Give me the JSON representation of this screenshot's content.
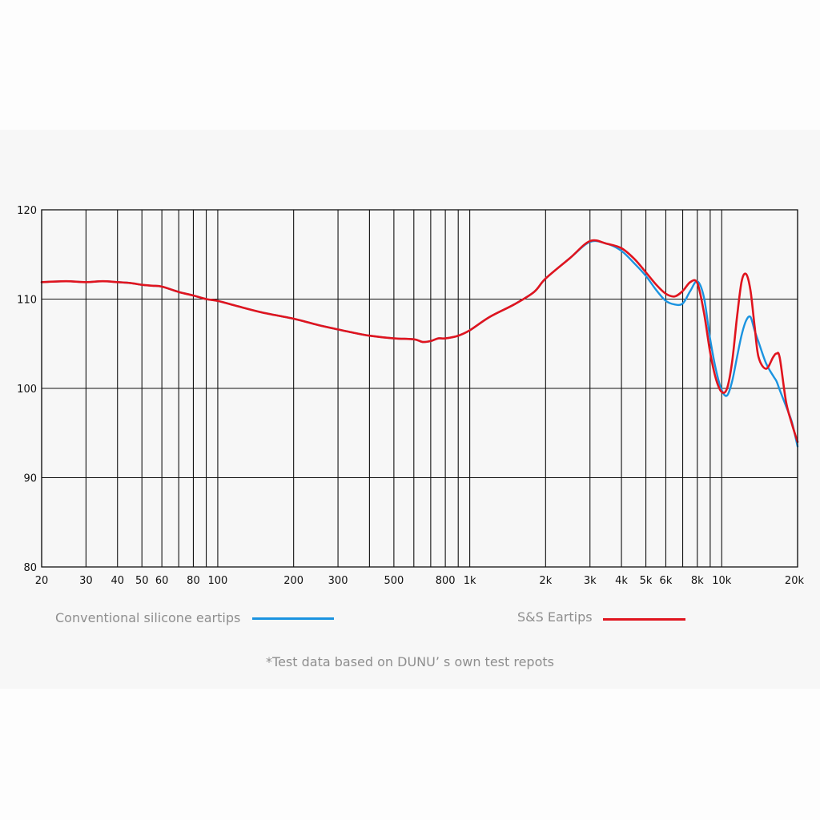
{
  "chart_data": {
    "type": "line",
    "title": "",
    "xlabel": "",
    "ylabel": "",
    "x_scale": "log",
    "xlim": [
      20,
      20000
    ],
    "ylim": [
      80,
      120
    ],
    "grid": true,
    "y_ticks": [
      80,
      90,
      100,
      110,
      120
    ],
    "y_tick_labels": [
      "80",
      "90",
      "100",
      "110",
      "120"
    ],
    "x_ticks": [
      20,
      30,
      40,
      50,
      60,
      80,
      100,
      200,
      300,
      500,
      800,
      1000,
      2000,
      3000,
      4000,
      5000,
      6000,
      8000,
      10000,
      20000
    ],
    "x_tick_labels": [
      "20",
      "30",
      "40",
      "50",
      "60",
      "80",
      "100",
      "200",
      "300",
      "500",
      "800",
      "1k",
      "2k",
      "3k",
      "4k",
      "5k",
      "6k",
      "8k",
      "10k",
      "20k"
    ],
    "x_grid": [
      20,
      30,
      40,
      50,
      60,
      70,
      80,
      90,
      100,
      200,
      300,
      400,
      500,
      600,
      700,
      800,
      900,
      1000,
      2000,
      3000,
      4000,
      5000,
      6000,
      7000,
      8000,
      9000,
      10000,
      20000
    ],
    "x": [
      20,
      25,
      30,
      35,
      40,
      45,
      50,
      55,
      60,
      70,
      80,
      90,
      100,
      120,
      150,
      200,
      250,
      300,
      350,
      400,
      500,
      600,
      650,
      700,
      750,
      800,
      900,
      1000,
      1200,
      1500,
      1800,
      2000,
      2500,
      3000,
      3500,
      4000,
      4500,
      5000,
      5500,
      6000,
      6500,
      7000,
      7500,
      8000,
      8500,
      9000,
      9500,
      10000,
      10500,
      11000,
      11500,
      12000,
      12500,
      13000,
      13500,
      14000,
      15000,
      16000,
      16500,
      17000,
      18000,
      19000,
      20000
    ],
    "series": [
      {
        "name": "Conventional silicone eartips",
        "color": "#1a93e0",
        "values": [
          111.9,
          112.0,
          111.9,
          112.0,
          111.9,
          111.8,
          111.6,
          111.5,
          111.4,
          110.8,
          110.4,
          110.0,
          109.8,
          109.2,
          108.5,
          107.8,
          107.1,
          106.6,
          106.2,
          105.9,
          105.6,
          105.5,
          105.2,
          105.3,
          105.6,
          105.6,
          105.9,
          106.5,
          108.0,
          109.4,
          110.8,
          112.3,
          114.6,
          116.4,
          116.2,
          115.4,
          114.0,
          112.6,
          111.0,
          109.8,
          109.4,
          109.5,
          110.9,
          112.0,
          110.2,
          105.5,
          102.0,
          99.8,
          99.2,
          100.8,
          103.5,
          106.0,
          107.6,
          108.0,
          106.5,
          105.2,
          102.8,
          101.4,
          100.8,
          99.8,
          98.0,
          96.2,
          93.5
        ]
      },
      {
        "name": "S&S Eartips",
        "color": "#e0141e",
        "values": [
          111.9,
          112.0,
          111.9,
          112.0,
          111.9,
          111.8,
          111.6,
          111.5,
          111.4,
          110.8,
          110.4,
          110.0,
          109.8,
          109.2,
          108.5,
          107.8,
          107.1,
          106.6,
          106.2,
          105.9,
          105.6,
          105.5,
          105.2,
          105.3,
          105.6,
          105.6,
          105.9,
          106.5,
          108.0,
          109.4,
          110.8,
          112.3,
          114.6,
          116.5,
          116.2,
          115.7,
          114.5,
          113.0,
          111.6,
          110.6,
          110.3,
          110.9,
          111.9,
          111.8,
          108.5,
          104.0,
          101.0,
          99.6,
          100.0,
          103.0,
          108.0,
          112.0,
          112.8,
          111.0,
          107.0,
          103.5,
          102.2,
          103.5,
          103.9,
          103.4,
          98.5,
          96.0,
          94.0
        ]
      }
    ]
  },
  "legend": {
    "items": [
      {
        "label": "Conventional silicone eartips",
        "color": "#1a93e0"
      },
      {
        "label": "S&S Eartips",
        "color": "#e0141e"
      }
    ]
  },
  "footnote": "*Test data based on DUNU’ s own test repots"
}
